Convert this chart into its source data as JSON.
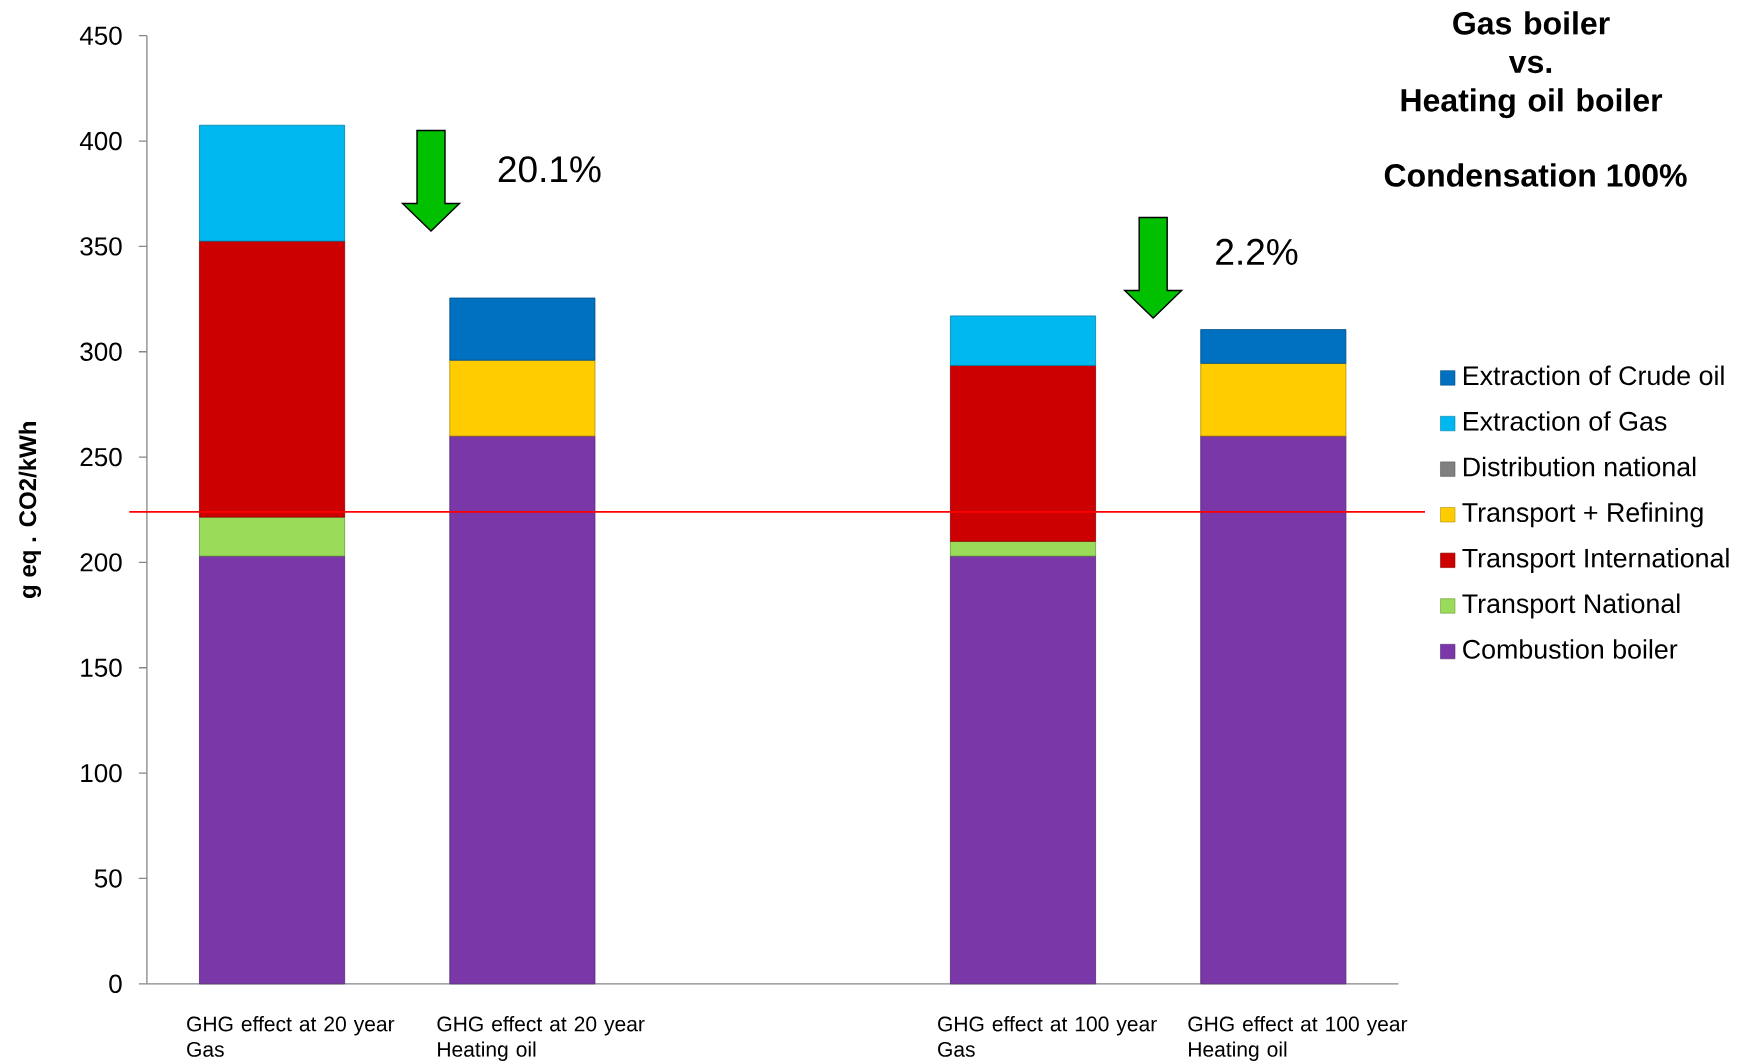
{
  "chart_data": {
    "type": "bar",
    "stacked": true,
    "title": "Gas boiler vs. Heating oil boiler",
    "subtitle": "Condensation 100%",
    "ylabel": "g eq . CO2/kWh",
    "categories": [
      "GHG effect at 20 year Gas",
      "GHG effect at 20 year Heating oil",
      null,
      "GHG effect at 100 year Gas",
      "GHG effect at 100 year Heating oil"
    ],
    "series": [
      {
        "name": "Combustion boiler",
        "color": "#7a37a8",
        "values": [
          203,
          260,
          null,
          203,
          260
        ]
      },
      {
        "name": "Transport National",
        "color": "#9bdb5a",
        "values": [
          18.5,
          null,
          null,
          7,
          null
        ]
      },
      {
        "name": "Transport International",
        "color": "#cc0000",
        "values": [
          131,
          null,
          null,
          83.5,
          null
        ]
      },
      {
        "name": "Transport + Refining",
        "color": "#ffcc00",
        "values": [
          null,
          36,
          null,
          null,
          34.5
        ]
      },
      {
        "name": "Distribution national",
        "color": "#808080",
        "values": [
          null,
          null,
          null,
          null,
          null
        ]
      },
      {
        "name": "Extraction of Gas",
        "color": "#00b8f0",
        "values": [
          55,
          null,
          null,
          23.5,
          null
        ]
      },
      {
        "name": "Extraction of Crude oil",
        "color": "#0070c0",
        "values": [
          null,
          29.5,
          null,
          null,
          16
        ]
      }
    ],
    "ylim": [
      0,
      450
    ],
    "yticks": [
      0,
      50,
      100,
      150,
      200,
      250,
      300,
      350,
      400,
      450
    ],
    "legend": "right",
    "ref_lines": [
      {
        "axis": "y",
        "value": 224,
        "color": "#ff0000"
      }
    ],
    "annotations": [
      "20.1%",
      "2.2%"
    ]
  }
}
